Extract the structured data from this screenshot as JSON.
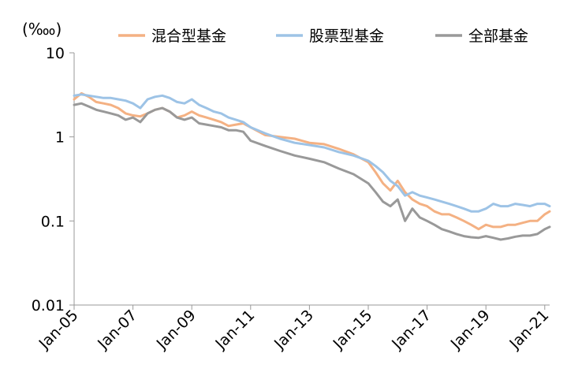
{
  "chart_data": {
    "type": "line",
    "title": "",
    "xlabel": "",
    "ylabel": "",
    "unit_label": "(‱)",
    "y_scale": "log",
    "ylim": [
      0.01,
      10
    ],
    "y_ticks": [
      10,
      1,
      0.1,
      0.01
    ],
    "y_tick_labels": [
      "10",
      "1",
      "0.1",
      "0.01"
    ],
    "xlim": [
      "2005-01",
      "2021-03"
    ],
    "x_ticks": [
      "2005-01",
      "2007-01",
      "2009-01",
      "2011-01",
      "2013-01",
      "2015-01",
      "2017-01",
      "2019-01",
      "2021-01"
    ],
    "x_tick_labels": [
      "Jan-05",
      "Jan-07",
      "Jan-09",
      "Jan-11",
      "Jan-13",
      "Jan-15",
      "Jan-17",
      "Jan-19",
      "Jan-21"
    ],
    "grid": false,
    "legend_position": "top",
    "series": [
      {
        "name": "混合型基金",
        "color": "#f4b183",
        "x": [
          "2005-01",
          "2005-04",
          "2005-07",
          "2005-10",
          "2006-01",
          "2006-04",
          "2006-07",
          "2006-10",
          "2007-01",
          "2007-04",
          "2007-07",
          "2007-10",
          "2008-01",
          "2008-04",
          "2008-07",
          "2008-10",
          "2009-01",
          "2009-04",
          "2009-07",
          "2009-10",
          "2010-01",
          "2010-04",
          "2010-07",
          "2010-10",
          "2011-01",
          "2011-07",
          "2012-01",
          "2012-07",
          "2013-01",
          "2013-07",
          "2014-01",
          "2014-07",
          "2015-01",
          "2015-04",
          "2015-07",
          "2015-10",
          "2016-01",
          "2016-04",
          "2016-07",
          "2016-10",
          "2017-01",
          "2017-04",
          "2017-07",
          "2017-10",
          "2018-01",
          "2018-04",
          "2018-07",
          "2018-10",
          "2019-01",
          "2019-04",
          "2019-07",
          "2019-10",
          "2020-01",
          "2020-04",
          "2020-07",
          "2020-10",
          "2021-01",
          "2021-03"
        ],
        "values": [
          2.8,
          3.3,
          3.0,
          2.6,
          2.5,
          2.4,
          2.2,
          1.9,
          1.8,
          1.75,
          1.9,
          2.1,
          2.2,
          2.0,
          1.7,
          1.8,
          2.0,
          1.8,
          1.7,
          1.6,
          1.5,
          1.35,
          1.4,
          1.45,
          1.3,
          1.05,
          1.0,
          0.95,
          0.85,
          0.82,
          0.72,
          0.62,
          0.5,
          0.38,
          0.28,
          0.23,
          0.3,
          0.22,
          0.18,
          0.16,
          0.15,
          0.13,
          0.12,
          0.12,
          0.11,
          0.1,
          0.09,
          0.08,
          0.09,
          0.085,
          0.085,
          0.09,
          0.09,
          0.095,
          0.1,
          0.1,
          0.12,
          0.13
        ]
      },
      {
        "name": "股票型基金",
        "color": "#9dc3e6",
        "x": [
          "2005-01",
          "2005-04",
          "2005-07",
          "2005-10",
          "2006-01",
          "2006-04",
          "2006-07",
          "2006-10",
          "2007-01",
          "2007-04",
          "2007-07",
          "2007-10",
          "2008-01",
          "2008-04",
          "2008-07",
          "2008-10",
          "2009-01",
          "2009-04",
          "2009-07",
          "2009-10",
          "2010-01",
          "2010-04",
          "2010-07",
          "2010-10",
          "2011-01",
          "2011-07",
          "2012-01",
          "2012-07",
          "2013-01",
          "2013-07",
          "2014-01",
          "2014-07",
          "2015-01",
          "2015-04",
          "2015-07",
          "2015-10",
          "2016-01",
          "2016-04",
          "2016-07",
          "2016-10",
          "2017-01",
          "2017-04",
          "2017-07",
          "2017-10",
          "2018-01",
          "2018-04",
          "2018-07",
          "2018-10",
          "2019-01",
          "2019-04",
          "2019-07",
          "2019-10",
          "2020-01",
          "2020-04",
          "2020-07",
          "2020-10",
          "2021-01",
          "2021-03"
        ],
        "values": [
          3.1,
          3.2,
          3.1,
          3.0,
          2.9,
          2.9,
          2.8,
          2.7,
          2.5,
          2.2,
          2.8,
          3.0,
          3.1,
          2.9,
          2.6,
          2.5,
          2.8,
          2.4,
          2.2,
          2.0,
          1.9,
          1.7,
          1.6,
          1.5,
          1.3,
          1.1,
          0.95,
          0.85,
          0.8,
          0.75,
          0.66,
          0.6,
          0.52,
          0.45,
          0.38,
          0.3,
          0.26,
          0.2,
          0.22,
          0.2,
          0.19,
          0.18,
          0.17,
          0.16,
          0.15,
          0.14,
          0.13,
          0.13,
          0.14,
          0.16,
          0.15,
          0.15,
          0.16,
          0.155,
          0.15,
          0.16,
          0.16,
          0.15
        ]
      },
      {
        "name": "全部基金",
        "color": "#999999",
        "x": [
          "2005-01",
          "2005-04",
          "2005-07",
          "2005-10",
          "2006-01",
          "2006-04",
          "2006-07",
          "2006-10",
          "2007-01",
          "2007-04",
          "2007-07",
          "2007-10",
          "2008-01",
          "2008-04",
          "2008-07",
          "2008-10",
          "2009-01",
          "2009-04",
          "2009-07",
          "2009-10",
          "2010-01",
          "2010-04",
          "2010-07",
          "2010-10",
          "2011-01",
          "2011-07",
          "2012-01",
          "2012-07",
          "2013-01",
          "2013-07",
          "2014-01",
          "2014-07",
          "2015-01",
          "2015-04",
          "2015-07",
          "2015-10",
          "2016-01",
          "2016-04",
          "2016-07",
          "2016-10",
          "2017-01",
          "2017-04",
          "2017-07",
          "2017-10",
          "2018-01",
          "2018-04",
          "2018-07",
          "2018-10",
          "2019-01",
          "2019-04",
          "2019-07",
          "2019-10",
          "2020-01",
          "2020-04",
          "2020-07",
          "2020-10",
          "2021-01",
          "2021-03"
        ],
        "values": [
          2.4,
          2.5,
          2.3,
          2.1,
          2.0,
          1.9,
          1.8,
          1.6,
          1.7,
          1.5,
          1.9,
          2.1,
          2.2,
          2.0,
          1.7,
          1.6,
          1.7,
          1.45,
          1.4,
          1.35,
          1.3,
          1.2,
          1.2,
          1.15,
          0.9,
          0.78,
          0.68,
          0.6,
          0.55,
          0.5,
          0.42,
          0.36,
          0.28,
          0.22,
          0.17,
          0.15,
          0.18,
          0.1,
          0.14,
          0.11,
          0.1,
          0.09,
          0.08,
          0.075,
          0.07,
          0.066,
          0.064,
          0.063,
          0.066,
          0.063,
          0.06,
          0.062,
          0.065,
          0.067,
          0.067,
          0.07,
          0.08,
          0.085
        ]
      }
    ]
  }
}
